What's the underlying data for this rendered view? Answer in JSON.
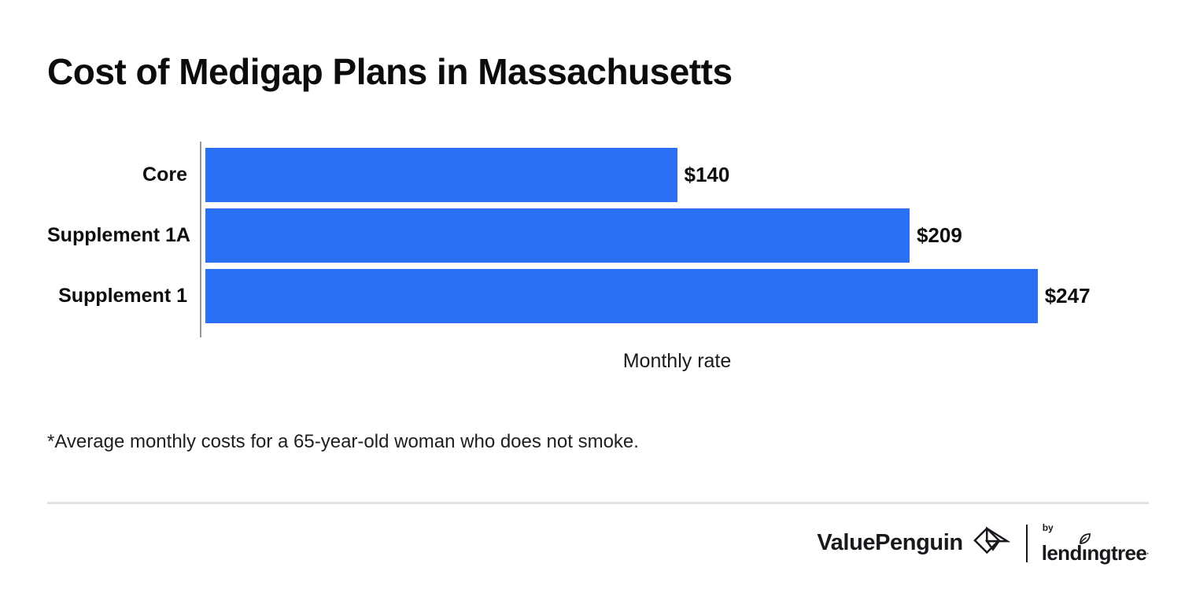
{
  "page_title": "Cost of Medigap Plans in Massachusetts",
  "chart_data": {
    "type": "bar",
    "orientation": "horizontal",
    "title": "Cost of Medigap Plans in Massachusetts",
    "categories": [
      "Core",
      "Supplement 1A",
      "Supplement 1"
    ],
    "values": [
      140,
      209,
      247
    ],
    "value_labels": [
      "$140",
      "$209",
      "$247"
    ],
    "xlabel": "Monthly rate",
    "ylabel": "",
    "xlim": [
      0,
      280
    ],
    "grid": false,
    "legend": "none",
    "bar_color": "#2a6ff4",
    "axis_color": "#9a9a9a"
  },
  "footnote": "*Average monthly costs for a 65-year-old woman who does not smoke.",
  "footer": {
    "valuepenguin_wordmark": "ValuePenguin",
    "by_label": "by",
    "lendingtree_wordmark": "lendingtree"
  },
  "colors": {
    "bar": "#2a6ff4",
    "axis": "#9a9a9a",
    "divider": "#e1e1e1",
    "text": "#111111",
    "brand_dark": "#17191c"
  }
}
